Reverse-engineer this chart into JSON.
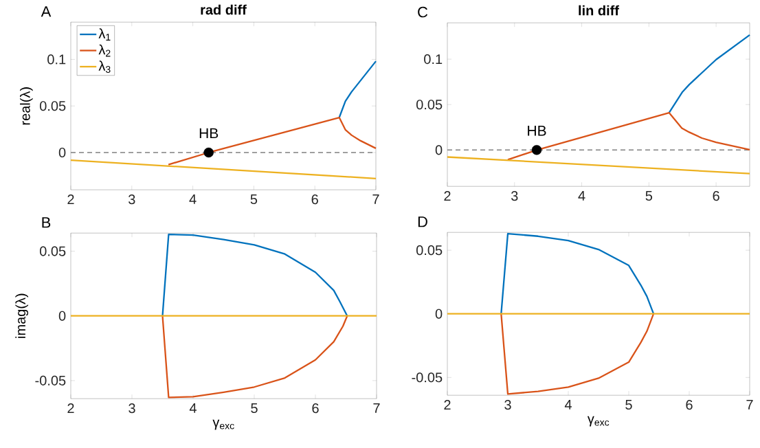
{
  "chart_data": [
    {
      "type": "line",
      "title": "rad diff",
      "ylabel": "real(λ)",
      "xlim": [
        2,
        7
      ],
      "xticks": [
        2,
        3,
        4,
        5,
        6,
        7
      ],
      "ylim": [
        -0.04,
        0.14
      ],
      "yticks": [
        0,
        0.05,
        0.1
      ],
      "legend": "top left",
      "annotations": [
        "A",
        {
          "text": "HB",
          "x": 4.26,
          "y": 0
        }
      ],
      "ref_lines": [
        {
          "axis": "y",
          "value": 0,
          "color": "#808080",
          "line_style": "dashed"
        }
      ],
      "series": [
        {
          "name": "λ$_{1}$",
          "color": "#0072bd",
          "x": [
            6.4,
            6.5,
            6.6,
            7
          ],
          "values": [
            0.0376,
            0.055,
            0.065,
            0.098
          ]
        },
        {
          "name": "λ$_{2}$",
          "color": "#d95319",
          "x": [
            3.6,
            4.26,
            6.4,
            6.5,
            6.6,
            6.75,
            7
          ],
          "values": [
            -0.013,
            0,
            0.0376,
            0.0245,
            0.0187,
            0.0126,
            0.0045
          ]
        },
        {
          "name": "λ$_{3}$",
          "color": "#edb120",
          "x": [
            2,
            7
          ],
          "values": [
            -0.0082,
            -0.0279
          ]
        },
        {
          "type": "scatter",
          "marker": "circle",
          "color": "#000000",
          "x": [
            4.26
          ],
          "values": [
            0
          ]
        }
      ]
    },
    {
      "type": "line",
      "title": "lin diff",
      "xlim": [
        2,
        6.5
      ],
      "xticks": [
        2,
        3,
        4,
        5,
        6
      ],
      "ylim": [
        -0.04,
        0.14
      ],
      "yticks": [
        0,
        0.05,
        0.1
      ],
      "annotations": [
        "C",
        {
          "text": "HB",
          "x": 3.33,
          "y": 0
        }
      ],
      "ref_lines": [
        {
          "axis": "y",
          "value": 0,
          "color": "#808080",
          "line_style": "dashed"
        }
      ],
      "series": [
        {
          "color": "#0072bd",
          "x": [
            5.3,
            5.5,
            5.6,
            6,
            6.5
          ],
          "values": [
            0.041,
            0.064,
            0.072,
            0.0995,
            0.1266
          ]
        },
        {
          "color": "#d95319",
          "x": [
            2.9,
            3.33,
            5.3,
            5.49,
            5.6,
            5.79,
            6,
            6.5
          ],
          "values": [
            -0.0106,
            0,
            0.041,
            0.024,
            0.0196,
            0.0131,
            0.0085,
            0.0003
          ]
        },
        {
          "color": "#edb120",
          "x": [
            2,
            6.5
          ],
          "values": [
            -0.0077,
            -0.026
          ]
        },
        {
          "type": "scatter",
          "marker": "circle",
          "color": "#000000",
          "x": [
            3.33
          ],
          "values": [
            0
          ]
        }
      ]
    },
    {
      "type": "line",
      "xlabel": "γ$_{exc}$",
      "ylabel": "imag(λ)",
      "xlim": [
        2,
        7
      ],
      "xticks": [
        2,
        3,
        4,
        5,
        6,
        7
      ],
      "ylim": [
        -0.064,
        0.064
      ],
      "yticks": [
        -0.05,
        0,
        0.05
      ],
      "annotations": [
        "B"
      ],
      "series": [
        {
          "color": "#0072bd",
          "x": [
            3.5,
            3.6,
            4,
            4.5,
            5,
            5.5,
            6,
            6.3,
            6.4,
            6.52
          ],
          "values": [
            0,
            0.063,
            0.0625,
            0.059,
            0.0549,
            0.0478,
            0.0337,
            0.0197,
            0.011,
            0
          ]
        },
        {
          "color": "#d95319",
          "x": [
            3.5,
            3.6,
            4,
            4.5,
            5,
            5.5,
            6,
            6.3,
            6.45,
            6.52
          ],
          "values": [
            0,
            -0.063,
            -0.0625,
            -0.059,
            -0.055,
            -0.048,
            -0.034,
            -0.02,
            -0.008,
            0
          ]
        },
        {
          "color": "#edb120",
          "x": [
            2,
            7
          ],
          "values": [
            0,
            0
          ]
        }
      ]
    },
    {
      "type": "line",
      "xlabel": "γ$_{exc}$",
      "xlim": [
        2,
        7
      ],
      "xticks": [
        2,
        3,
        4,
        5,
        6,
        7
      ],
      "ylim": [
        -0.064,
        0.064
      ],
      "yticks": [
        -0.05,
        0,
        0.05
      ],
      "annotations": [
        "D"
      ],
      "series": [
        {
          "color": "#0072bd",
          "x": [
            2.89,
            3.0,
            3.5,
            4,
            4.5,
            5,
            5.2,
            5.3,
            5.41
          ],
          "values": [
            0,
            0.063,
            0.061,
            0.0576,
            0.0506,
            0.038,
            0.0225,
            0.0137,
            0
          ]
        },
        {
          "color": "#d95319",
          "x": [
            2.89,
            3.0,
            3.5,
            4,
            4.5,
            5,
            5.2,
            5.3,
            5.41
          ],
          "values": [
            0,
            -0.063,
            -0.061,
            -0.0576,
            -0.0506,
            -0.038,
            -0.0225,
            -0.0137,
            0
          ]
        },
        {
          "color": "#edb120",
          "x": [
            2,
            7
          ],
          "values": [
            0,
            0
          ]
        }
      ]
    }
  ]
}
